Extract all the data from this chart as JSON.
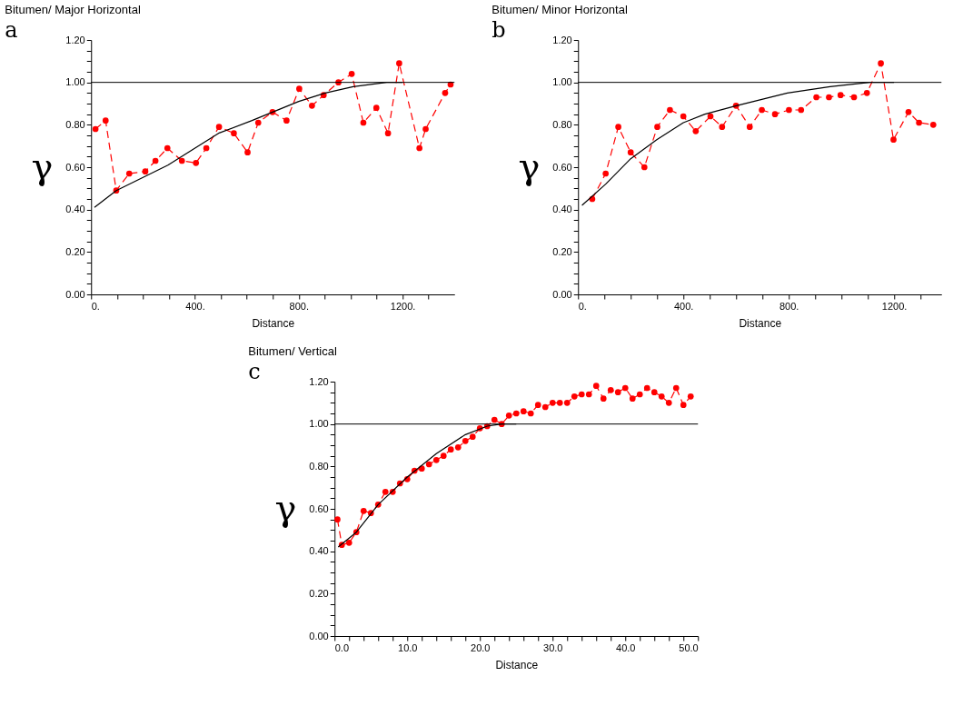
{
  "chart_data": [
    {
      "type": "line",
      "title": "Bitumen/ Major Horizontal",
      "xlabel": "Distance",
      "ylabel": "γ",
      "annotations": [
        "a"
      ],
      "grid": false,
      "xlim": [
        0,
        1400
      ],
      "ylim": [
        0,
        1.2
      ],
      "xticks": [
        {
          "value": 0,
          "label": "0."
        },
        {
          "value": 100,
          "label": null
        },
        {
          "value": 200,
          "label": null
        },
        {
          "value": 300,
          "label": null
        },
        {
          "value": 400,
          "label": "400."
        },
        {
          "value": 500,
          "label": null
        },
        {
          "value": 600,
          "label": null
        },
        {
          "value": 700,
          "label": null
        },
        {
          "value": 800,
          "label": "800."
        },
        {
          "value": 900,
          "label": null
        },
        {
          "value": 1000,
          "label": null
        },
        {
          "value": 1100,
          "label": null
        },
        {
          "value": 1200,
          "label": "1200."
        },
        {
          "value": 1300,
          "label": null
        }
      ],
      "yticks": [
        {
          "value": 0,
          "label": "0.00"
        },
        {
          "value": 0.05,
          "label": null
        },
        {
          "value": 0.1,
          "label": null
        },
        {
          "value": 0.15,
          "label": null
        },
        {
          "value": 0.2,
          "label": "0.20"
        },
        {
          "value": 0.25,
          "label": null
        },
        {
          "value": 0.3,
          "label": null
        },
        {
          "value": 0.35,
          "label": null
        },
        {
          "value": 0.4,
          "label": "0.40"
        },
        {
          "value": 0.45,
          "label": null
        },
        {
          "value": 0.5,
          "label": null
        },
        {
          "value": 0.55,
          "label": null
        },
        {
          "value": 0.6,
          "label": "0.60"
        },
        {
          "value": 0.65,
          "label": null
        },
        {
          "value": 0.7,
          "label": null
        },
        {
          "value": 0.75,
          "label": null
        },
        {
          "value": 0.8,
          "label": "0.80"
        },
        {
          "value": 0.85,
          "label": null
        },
        {
          "value": 0.9,
          "label": null
        },
        {
          "value": 0.95,
          "label": null
        },
        {
          "value": 1.0,
          "label": "1.00"
        },
        {
          "value": 1.05,
          "label": null
        },
        {
          "value": 1.1,
          "label": null
        },
        {
          "value": 1.15,
          "label": null
        },
        {
          "value": 1.2,
          "label": "1.20"
        }
      ],
      "ref_lines": [
        {
          "axis": "y",
          "value": 1.0,
          "color": "#000000"
        }
      ],
      "series": [
        {
          "color": "#ff0000",
          "marker": "circle",
          "line_style": "dashed",
          "x": [
            17,
            56,
            97,
            147,
            209,
            248,
            294,
            350,
            404,
            444,
            493,
            550,
            603,
            644,
            699,
            753,
            802,
            851,
            896,
            953,
            1004,
            1049,
            1099,
            1144,
            1187,
            1265,
            1289,
            1364,
            1385
          ],
          "values": [
            0.78,
            0.82,
            0.49,
            0.57,
            0.58,
            0.63,
            0.69,
            0.63,
            0.62,
            0.69,
            0.79,
            0.76,
            0.67,
            0.81,
            0.86,
            0.82,
            0.97,
            0.89,
            0.94,
            1.0,
            1.04,
            0.81,
            0.88,
            0.76,
            1.09,
            0.69,
            0.78,
            0.95,
            0.99
          ]
        },
        {
          "color": "#000000",
          "marker": "none",
          "line_style": "solid",
          "x": [
            13,
            97,
            296,
            491,
            620,
            800,
            902,
            1010,
            1139,
            1200
          ],
          "values": [
            0.41,
            0.49,
            0.61,
            0.76,
            0.82,
            0.91,
            0.95,
            0.98,
            1.0,
            1.0
          ]
        }
      ]
    },
    {
      "type": "line",
      "title": "Bitumen/ Minor Horizontal",
      "xlabel": "Distance",
      "ylabel": "γ",
      "annotations": [
        "b"
      ],
      "grid": false,
      "xlim": [
        0,
        1380
      ],
      "ylim": [
        0,
        1.2
      ],
      "xticks": [
        {
          "value": 0,
          "label": "0."
        },
        {
          "value": 100,
          "label": null
        },
        {
          "value": 200,
          "label": null
        },
        {
          "value": 300,
          "label": null
        },
        {
          "value": 400,
          "label": "400."
        },
        {
          "value": 500,
          "label": null
        },
        {
          "value": 600,
          "label": null
        },
        {
          "value": 700,
          "label": null
        },
        {
          "value": 800,
          "label": "800."
        },
        {
          "value": 900,
          "label": null
        },
        {
          "value": 1000,
          "label": null
        },
        {
          "value": 1100,
          "label": null
        },
        {
          "value": 1200,
          "label": "1200."
        },
        {
          "value": 1300,
          "label": null
        }
      ],
      "yticks": [
        {
          "value": 0,
          "label": "0.00"
        },
        {
          "value": 0.05,
          "label": null
        },
        {
          "value": 0.1,
          "label": null
        },
        {
          "value": 0.15,
          "label": null
        },
        {
          "value": 0.2,
          "label": "0.20"
        },
        {
          "value": 0.25,
          "label": null
        },
        {
          "value": 0.3,
          "label": null
        },
        {
          "value": 0.35,
          "label": null
        },
        {
          "value": 0.4,
          "label": "0.40"
        },
        {
          "value": 0.45,
          "label": null
        },
        {
          "value": 0.5,
          "label": null
        },
        {
          "value": 0.55,
          "label": null
        },
        {
          "value": 0.6,
          "label": "0.60"
        },
        {
          "value": 0.65,
          "label": null
        },
        {
          "value": 0.7,
          "label": null
        },
        {
          "value": 0.75,
          "label": null
        },
        {
          "value": 0.8,
          "label": "0.80"
        },
        {
          "value": 0.85,
          "label": null
        },
        {
          "value": 0.9,
          "label": null
        },
        {
          "value": 0.95,
          "label": null
        },
        {
          "value": 1.0,
          "label": "1.00"
        },
        {
          "value": 1.05,
          "label": null
        },
        {
          "value": 1.1,
          "label": null
        },
        {
          "value": 1.15,
          "label": null
        },
        {
          "value": 1.2,
          "label": "1.20"
        }
      ],
      "ref_lines": [
        {
          "axis": "y",
          "value": 1.0,
          "color": "#000000"
        }
      ],
      "series": [
        {
          "color": "#ff0000",
          "marker": "circle",
          "line_style": "dashed",
          "x": [
            54,
            105,
            153,
            200,
            252,
            301,
            349,
            400,
            447,
            503,
            547,
            600,
            652,
            698,
            748,
            801,
            847,
            905,
            953,
            997,
            1048,
            1097,
            1150,
            1198,
            1255,
            1295,
            1349
          ],
          "values": [
            0.45,
            0.57,
            0.79,
            0.67,
            0.6,
            0.79,
            0.87,
            0.84,
            0.77,
            0.84,
            0.79,
            0.89,
            0.79,
            0.87,
            0.85,
            0.87,
            0.87,
            0.93,
            0.93,
            0.94,
            0.93,
            0.95,
            1.09,
            0.73,
            0.86,
            0.81,
            0.8
          ]
        },
        {
          "color": "#000000",
          "marker": "none",
          "line_style": "solid",
          "x": [
            15,
            105,
            200,
            299,
            400,
            482,
            601,
            795,
            957,
            1108,
            1200
          ],
          "values": [
            0.42,
            0.52,
            0.64,
            0.73,
            0.81,
            0.85,
            0.89,
            0.95,
            0.98,
            1.0,
            1.0
          ]
        }
      ]
    },
    {
      "type": "line",
      "title": "Bitumen/ Vertical",
      "xlabel": "Distance",
      "ylabel": "γ",
      "annotations": [
        "c"
      ],
      "grid": false,
      "xlim": [
        0,
        50
      ],
      "ylim": [
        0,
        1.2
      ],
      "xticks": [
        {
          "value": 0,
          "label": "0.0"
        },
        {
          "value": 2,
          "label": null
        },
        {
          "value": 4,
          "label": null
        },
        {
          "value": 6,
          "label": null
        },
        {
          "value": 8,
          "label": null
        },
        {
          "value": 10,
          "label": "10.0"
        },
        {
          "value": 12,
          "label": null
        },
        {
          "value": 14,
          "label": null
        },
        {
          "value": 16,
          "label": null
        },
        {
          "value": 18,
          "label": null
        },
        {
          "value": 20,
          "label": "20.0"
        },
        {
          "value": 22,
          "label": null
        },
        {
          "value": 24,
          "label": null
        },
        {
          "value": 26,
          "label": null
        },
        {
          "value": 28,
          "label": null
        },
        {
          "value": 30,
          "label": "30.0"
        },
        {
          "value": 32,
          "label": null
        },
        {
          "value": 34,
          "label": null
        },
        {
          "value": 36,
          "label": null
        },
        {
          "value": 38,
          "label": null
        },
        {
          "value": 40,
          "label": "40.0"
        },
        {
          "value": 42,
          "label": null
        },
        {
          "value": 44,
          "label": null
        },
        {
          "value": 46,
          "label": null
        },
        {
          "value": 48,
          "label": null
        },
        {
          "value": 50,
          "label": "50.0"
        }
      ],
      "yticks": [
        {
          "value": 0,
          "label": "0.00"
        },
        {
          "value": 0.05,
          "label": null
        },
        {
          "value": 0.1,
          "label": null
        },
        {
          "value": 0.15,
          "label": null
        },
        {
          "value": 0.2,
          "label": "0.20"
        },
        {
          "value": 0.25,
          "label": null
        },
        {
          "value": 0.3,
          "label": null
        },
        {
          "value": 0.35,
          "label": null
        },
        {
          "value": 0.4,
          "label": "0.40"
        },
        {
          "value": 0.45,
          "label": null
        },
        {
          "value": 0.5,
          "label": null
        },
        {
          "value": 0.55,
          "label": null
        },
        {
          "value": 0.6,
          "label": "0.60"
        },
        {
          "value": 0.65,
          "label": null
        },
        {
          "value": 0.7,
          "label": null
        },
        {
          "value": 0.75,
          "label": null
        },
        {
          "value": 0.8,
          "label": "0.80"
        },
        {
          "value": 0.85,
          "label": null
        },
        {
          "value": 0.9,
          "label": null
        },
        {
          "value": 0.95,
          "label": null
        },
        {
          "value": 1.0,
          "label": "1.00"
        },
        {
          "value": 1.05,
          "label": null
        },
        {
          "value": 1.1,
          "label": null
        },
        {
          "value": 1.15,
          "label": null
        },
        {
          "value": 1.2,
          "label": "1.20"
        }
      ],
      "ref_lines": [
        {
          "axis": "y",
          "value": 1.0,
          "color": "#000000"
        }
      ],
      "series": [
        {
          "color": "#ff0000",
          "marker": "circle",
          "line_style": "dashed",
          "x": [
            0.4,
            1,
            2,
            3,
            4,
            5,
            6,
            7,
            8,
            9,
            10,
            11,
            12,
            13,
            14,
            15,
            16,
            17,
            18,
            19,
            20,
            21,
            22,
            23,
            24,
            25,
            26,
            27,
            28,
            29,
            30,
            31,
            32,
            33,
            34,
            35,
            36,
            37,
            38,
            39,
            40,
            41,
            42,
            43,
            44,
            45,
            46,
            47,
            48,
            49
          ],
          "values": [
            0.55,
            0.43,
            0.44,
            0.49,
            0.59,
            0.58,
            0.62,
            0.68,
            0.68,
            0.72,
            0.74,
            0.78,
            0.79,
            0.81,
            0.83,
            0.85,
            0.88,
            0.89,
            0.92,
            0.94,
            0.98,
            0.99,
            1.02,
            1.0,
            1.04,
            1.05,
            1.06,
            1.05,
            1.09,
            1.08,
            1.1,
            1.1,
            1.1,
            1.13,
            1.14,
            1.14,
            1.18,
            1.12,
            1.16,
            1.15,
            1.17,
            1.12,
            1.14,
            1.17,
            1.15,
            1.13,
            1.1,
            1.17,
            1.09,
            1.13
          ]
        },
        {
          "color": "#000000",
          "marker": "none",
          "line_style": "solid",
          "x": [
            0.5,
            3,
            6,
            10,
            14,
            18,
            21,
            23,
            25
          ],
          "values": [
            0.42,
            0.49,
            0.62,
            0.75,
            0.86,
            0.95,
            0.99,
            1.0,
            1.0
          ]
        }
      ]
    }
  ]
}
